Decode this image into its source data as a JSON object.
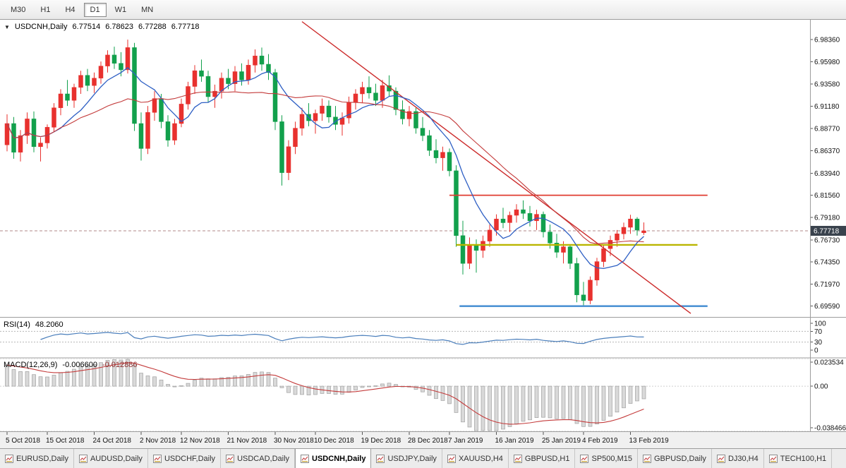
{
  "icons": {
    "dropdown_arrow": "▼"
  },
  "toolbar": {
    "timeframes": [
      "M30",
      "H1",
      "H4",
      "D1",
      "W1",
      "MN"
    ],
    "selected": "D1"
  },
  "chart": {
    "info": {
      "symbol_label": "USDCNH,Daily",
      "open": "6.77514",
      "high": "6.78623",
      "low": "6.77288",
      "close": "6.77718"
    },
    "price_axis_labels": [
      "6.98360",
      "6.95980",
      "6.93580",
      "6.91180",
      "6.88770",
      "6.86370",
      "6.83940",
      "6.81560",
      "6.79180",
      "6.76730",
      "6.74350",
      "6.71970",
      "6.69590"
    ],
    "current_price": "6.77718",
    "badge_color": "#39424d"
  },
  "chart_data": {
    "type": "candlestick",
    "symbol": "USDCNH",
    "timeframe": "Daily",
    "price_range": [
      6.685,
      7.005
    ],
    "colors": {
      "bull": "#e8312e",
      "bear": "#12a04c",
      "background": "#ffffff"
    },
    "candles": [
      [
        6.87,
        6.903,
        6.863,
        6.893
      ],
      [
        6.893,
        6.9,
        6.855,
        6.862
      ],
      [
        6.862,
        6.886,
        6.852,
        6.88
      ],
      [
        6.88,
        6.905,
        6.871,
        6.898
      ],
      [
        6.898,
        6.906,
        6.862,
        6.868
      ],
      [
        6.868,
        6.878,
        6.852,
        6.872
      ],
      [
        6.872,
        6.892,
        6.866,
        6.889
      ],
      [
        6.889,
        6.915,
        6.884,
        6.91
      ],
      [
        6.91,
        6.93,
        6.902,
        6.925
      ],
      [
        6.925,
        6.94,
        6.912,
        6.918
      ],
      [
        6.918,
        6.936,
        6.91,
        6.932
      ],
      [
        6.932,
        6.95,
        6.925,
        6.945
      ],
      [
        6.945,
        6.952,
        6.928,
        6.934
      ],
      [
        6.934,
        6.948,
        6.926,
        6.942
      ],
      [
        6.942,
        6.96,
        6.936,
        6.955
      ],
      [
        6.955,
        6.972,
        6.948,
        6.967
      ],
      [
        6.967,
        6.976,
        6.952,
        6.958
      ],
      [
        6.958,
        6.97,
        6.944,
        6.951
      ],
      [
        6.951,
        6.9836,
        6.947,
        6.975
      ],
      [
        6.975,
        6.98,
        6.885,
        6.893
      ],
      [
        6.893,
        6.905,
        6.853,
        6.866
      ],
      [
        6.866,
        6.912,
        6.86,
        6.905
      ],
      [
        6.905,
        6.928,
        6.896,
        6.92
      ],
      [
        6.92,
        6.925,
        6.888,
        6.895
      ],
      [
        6.895,
        6.902,
        6.868,
        6.875
      ],
      [
        6.875,
        6.898,
        6.87,
        6.893
      ],
      [
        6.893,
        6.92,
        6.889,
        6.914
      ],
      [
        6.914,
        6.938,
        6.908,
        6.933
      ],
      [
        6.933,
        6.956,
        6.925,
        6.95
      ],
      [
        6.95,
        6.962,
        6.938,
        6.944
      ],
      [
        6.944,
        6.95,
        6.916,
        6.922
      ],
      [
        6.922,
        6.935,
        6.91,
        6.928
      ],
      [
        6.928,
        6.948,
        6.92,
        6.942
      ],
      [
        6.942,
        6.952,
        6.93,
        6.936
      ],
      [
        6.936,
        6.955,
        6.928,
        6.949
      ],
      [
        6.949,
        6.958,
        6.934,
        6.94
      ],
      [
        6.94,
        6.962,
        6.935,
        6.956
      ],
      [
        6.956,
        6.973,
        6.948,
        6.966
      ],
      [
        6.966,
        6.975,
        6.95,
        6.957
      ],
      [
        6.957,
        6.968,
        6.94,
        6.948
      ],
      [
        6.948,
        6.952,
        6.886,
        6.895
      ],
      [
        6.895,
        6.902,
        6.826,
        6.84
      ],
      [
        6.84,
        6.875,
        6.832,
        6.868
      ],
      [
        6.868,
        6.895,
        6.86,
        6.888
      ],
      [
        6.888,
        6.91,
        6.88,
        6.903
      ],
      [
        6.903,
        6.915,
        6.89,
        6.896
      ],
      [
        6.896,
        6.908,
        6.882,
        6.904
      ],
      [
        6.904,
        6.92,
        6.896,
        6.912
      ],
      [
        6.912,
        6.918,
        6.894,
        6.9
      ],
      [
        6.9,
        6.912,
        6.886,
        6.892
      ],
      [
        6.892,
        6.905,
        6.88,
        6.899
      ],
      [
        6.899,
        6.922,
        6.893,
        6.916
      ],
      [
        6.916,
        6.93,
        6.908,
        6.925
      ],
      [
        6.925,
        6.938,
        6.915,
        6.932
      ],
      [
        6.932,
        6.944,
        6.92,
        6.926
      ],
      [
        6.926,
        6.936,
        6.912,
        6.918
      ],
      [
        6.918,
        6.94,
        6.91,
        6.934
      ],
      [
        6.934,
        6.945,
        6.922,
        6.928
      ],
      [
        6.928,
        6.932,
        6.902,
        6.908
      ],
      [
        6.908,
        6.918,
        6.892,
        6.898
      ],
      [
        6.898,
        6.912,
        6.89,
        6.906
      ],
      [
        6.906,
        6.91,
        6.882,
        6.888
      ],
      [
        6.888,
        6.9,
        6.874,
        6.88
      ],
      [
        6.88,
        6.886,
        6.858,
        6.864
      ],
      [
        6.864,
        6.876,
        6.85,
        6.856
      ],
      [
        6.856,
        6.868,
        6.842,
        6.862
      ],
      [
        6.862,
        6.866,
        6.836,
        6.842
      ],
      [
        6.842,
        6.848,
        6.76,
        6.772
      ],
      [
        6.772,
        6.788,
        6.73,
        6.742
      ],
      [
        6.742,
        6.77,
        6.736,
        6.762
      ],
      [
        6.762,
        6.768,
        6.732,
        6.756
      ],
      [
        6.756,
        6.772,
        6.748,
        6.766
      ],
      [
        6.766,
        6.784,
        6.76,
        6.778
      ],
      [
        6.778,
        6.795,
        6.772,
        6.79
      ],
      [
        6.79,
        6.802,
        6.78,
        6.786
      ],
      [
        6.786,
        6.798,
        6.776,
        6.794
      ],
      [
        6.794,
        6.806,
        6.786,
        6.8
      ],
      [
        6.8,
        6.81,
        6.79,
        6.796
      ],
      [
        6.796,
        6.804,
        6.782,
        6.788
      ],
      [
        6.788,
        6.8,
        6.778,
        6.795
      ],
      [
        6.795,
        6.798,
        6.77,
        6.776
      ],
      [
        6.776,
        6.784,
        6.758,
        6.764
      ],
      [
        6.764,
        6.774,
        6.748,
        6.754
      ],
      [
        6.754,
        6.766,
        6.742,
        6.76
      ],
      [
        6.76,
        6.762,
        6.736,
        6.742
      ],
      [
        6.742,
        6.748,
        6.7,
        6.708
      ],
      [
        6.708,
        6.722,
        6.6959,
        6.702
      ],
      [
        6.702,
        6.728,
        6.698,
        6.724
      ],
      [
        6.724,
        6.748,
        6.718,
        6.744
      ],
      [
        6.744,
        6.762,
        6.738,
        6.758
      ],
      [
        6.758,
        6.772,
        6.75,
        6.767
      ],
      [
        6.767,
        6.778,
        6.76,
        6.774
      ],
      [
        6.774,
        6.786,
        6.768,
        6.781
      ],
      [
        6.781,
        6.7945,
        6.774,
        6.79
      ],
      [
        6.79,
        6.792,
        6.772,
        6.778
      ],
      [
        6.77514,
        6.78623,
        6.77288,
        6.77718
      ]
    ],
    "x_labels": [
      {
        "label": "5 Oct 2018",
        "bar": 0
      },
      {
        "label": "15 Oct 2018",
        "bar": 6
      },
      {
        "label": "24 Oct 2018",
        "bar": 13
      },
      {
        "label": "2 Nov 2018",
        "bar": 20
      },
      {
        "label": "12 Nov 2018",
        "bar": 26
      },
      {
        "label": "21 Nov 2018",
        "bar": 33
      },
      {
        "label": "30 Nov 2018",
        "bar": 40
      },
      {
        "label": "10 Dec 2018",
        "bar": 46
      },
      {
        "label": "19 Dec 2018",
        "bar": 53
      },
      {
        "label": "28 Dec 2018",
        "bar": 60
      },
      {
        "label": "7 Jan 2019",
        "bar": 66
      },
      {
        "label": "16 Jan 2019",
        "bar": 73
      },
      {
        "label": "25 Jan 2019",
        "bar": 80
      },
      {
        "label": "4 Feb 2019",
        "bar": 86
      },
      {
        "label": "13 Feb 2019",
        "bar": 93
      }
    ],
    "overlays": {
      "ma_fast": {
        "period": 8,
        "color": "#2e5fc4"
      },
      "ma_slow": {
        "period": 21,
        "color": "#c43c3c"
      },
      "trendline": {
        "name": "descending-trendline",
        "x1_bar": 44,
        "price1": 7.003,
        "x2_bar": 102,
        "price2": 6.688,
        "color": "#cc2a2a"
      },
      "hlines": [
        {
          "name": "resistance-line-red",
          "price": 6.8156,
          "x1_bar": 66,
          "x2_bar": 104.5,
          "color": "#e03c31",
          "width": 1.7
        },
        {
          "name": "support-line-yellow",
          "price": 6.762,
          "x1_bar": 67,
          "x2_bar": 103,
          "color": "#b9b500",
          "width": 2.4
        },
        {
          "name": "support-line-blue",
          "price": 6.6959,
          "x1_bar": 67.5,
          "x2_bar": 104.5,
          "color": "#4f94d4",
          "width": 2.6
        }
      ]
    },
    "indicators": {
      "rsi": {
        "name": "RSI(14)",
        "value": "48.2060",
        "period": 14,
        "levels": [
          100,
          70,
          30,
          0
        ],
        "range": [
          0,
          100
        ],
        "color": "#4a7ebb"
      },
      "macd": {
        "name": "MACD(12,26,9)",
        "macd_value": "-0.006600",
        "signal_value": "-0.012886",
        "fast": 12,
        "slow": 26,
        "signal": 9,
        "axis_labels": [
          "0.023534",
          "0.00",
          "-0.038466"
        ],
        "range": [
          -0.038466,
          0.023534
        ],
        "histogram_fill": "#d9d9d9",
        "histogram_stroke": "#a0a0a0",
        "signal_color": "#c43c3c"
      }
    }
  },
  "tabs": [
    {
      "label": "EURUSD,Daily",
      "selected": false
    },
    {
      "label": "AUDUSD,Daily",
      "selected": false
    },
    {
      "label": "USDCHF,Daily",
      "selected": false
    },
    {
      "label": "USDCAD,Daily",
      "selected": false
    },
    {
      "label": "USDCNH,Daily",
      "selected": true
    },
    {
      "label": "USDJPY,Daily",
      "selected": false
    },
    {
      "label": "XAUUSD,H4",
      "selected": false
    },
    {
      "label": "GBPUSD,H1",
      "selected": false
    },
    {
      "label": "SP500,M15",
      "selected": false
    },
    {
      "label": "GBPUSD,Daily",
      "selected": false
    },
    {
      "label": "DJ30,H4",
      "selected": false
    },
    {
      "label": "TECH100,H1",
      "selected": false
    }
  ]
}
